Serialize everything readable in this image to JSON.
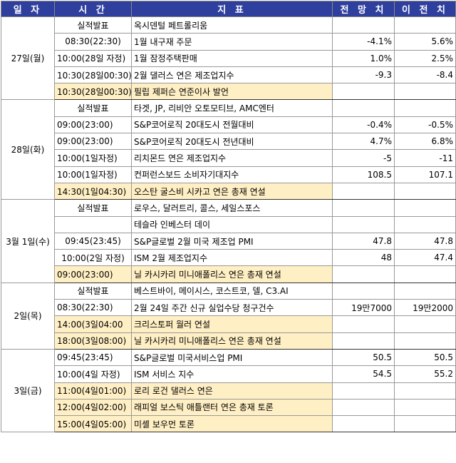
{
  "headers": {
    "date": "일 자",
    "time": "시 간",
    "indicator": "지 표",
    "forecast": "전 망 치",
    "previous": "이 전 치"
  },
  "days": [
    {
      "day": "27일(월)",
      "rows": [
        {
          "time": "실적발표",
          "event": "옥시덴털 페트롤리움",
          "forecast": "",
          "previous": "",
          "highlight": false,
          "center": true
        },
        {
          "time": "08:30(22:30)",
          "event": "1월 내구재 주문",
          "forecast": "-4.1%",
          "previous": "5.6%",
          "highlight": false,
          "center": true
        },
        {
          "time": "10:00(28일 자정)",
          "event": "1월 잠정주택판매",
          "forecast": "1.0%",
          "previous": "2.5%",
          "highlight": false,
          "center": false
        },
        {
          "time": "10:30(28일00:30)",
          "event": "2월 댈러스 연은 제조업지수",
          "forecast": "-9.3",
          "previous": "-8.4",
          "highlight": false,
          "center": true
        },
        {
          "time": "10:30(28일00:30)",
          "event": "필립 제퍼슨 연준이사 발언",
          "forecast": "",
          "previous": "",
          "highlight": true,
          "center": true
        }
      ]
    },
    {
      "day": "28일(화)",
      "rows": [
        {
          "time": "실적발표",
          "event": "타겟, JP, 리비안 오토모티브, AMC엔터",
          "forecast": "",
          "previous": "",
          "highlight": false,
          "center": true
        },
        {
          "time": "09:00(23:00)",
          "event": "S&P코어로직 20대도시 전월대비",
          "forecast": "-0.4%",
          "previous": "-0.5%",
          "highlight": false,
          "center": false
        },
        {
          "time": "09:00(23:00)",
          "event": "S&P코어로직 20대도시 전년대비",
          "forecast": "4.7%",
          "previous": "6.8%",
          "highlight": false,
          "center": false
        },
        {
          "time": "10:00(1일자정)",
          "event": "리치몬드 연은 제조업지수",
          "forecast": "-5",
          "previous": "-11",
          "highlight": false,
          "center": false
        },
        {
          "time": "10:00(1일자정)",
          "event": "컨퍼런스보드 소비자기대지수",
          "forecast": "108.5",
          "previous": "107.1",
          "highlight": false,
          "center": false
        },
        {
          "time": "14:30(1일04:30)",
          "event": "오스탄 굴스비 시카고 연은 총재 연설",
          "forecast": "",
          "previous": "",
          "highlight": true,
          "center": false
        }
      ]
    },
    {
      "day": "3월 1일(수)",
      "rows": [
        {
          "time": "실적발표",
          "event": "로우스, 달러트리, 콜스, 세일스포스",
          "forecast": "",
          "previous": "",
          "highlight": false,
          "center": true
        },
        {
          "time": "",
          "event": "테슬라 인베스터 데이",
          "forecast": "",
          "previous": "",
          "highlight": false,
          "center": true
        },
        {
          "time": "09:45(23:45)",
          "event": "S&P글로벌 2월 미국 제조업 PMI",
          "forecast": "47.8",
          "previous": "47.8",
          "highlight": false,
          "center": true
        },
        {
          "time": "10:00(2일 자정)",
          "event": "ISM 2월 제조업지수",
          "forecast": "48",
          "previous": "47.4",
          "highlight": false,
          "center": true
        },
        {
          "time": "09:00(23:00)",
          "event": "닐 카시카리 미니애폴리스 연은 총재 연설",
          "forecast": "",
          "previous": "",
          "highlight": true,
          "center": false
        }
      ]
    },
    {
      "day": "2일(목)",
      "rows": [
        {
          "time": "실적발표",
          "event": "베스트바이, 메이시스, 코스트코, 델, C3.AI",
          "forecast": "",
          "previous": "",
          "highlight": false,
          "center": true
        },
        {
          "time": "08:30(22:30)",
          "event": "2월 24일 주간 신규 실업수당 청구건수",
          "forecast": "19만7000",
          "previous": "19만2000",
          "highlight": false,
          "center": false
        },
        {
          "time": "14:00(3일04:00",
          "event": "크리스토퍼 월러 연설",
          "forecast": "",
          "previous": "",
          "highlight": true,
          "center": false
        },
        {
          "time": "18:00(3일08:00)",
          "event": "닐 카시카리 미니애폴리스 연은 총재 연설",
          "forecast": "",
          "previous": "",
          "highlight": true,
          "center": false
        }
      ]
    },
    {
      "day": "3일(금)",
      "rows": [
        {
          "time": "09:45(23:45)",
          "event": "S&P글로벌 미국서비스업 PMI",
          "forecast": "50.5",
          "previous": "50.5",
          "highlight": false,
          "center": false
        },
        {
          "time": "10:00(4일 자정)",
          "event": "ISM 서비스 지수",
          "forecast": "54.5",
          "previous": "55.2",
          "highlight": false,
          "center": false
        },
        {
          "time": "11:00(4일01:00)",
          "event": "로리 로건 댈러스 연은",
          "forecast": "",
          "previous": "",
          "highlight": true,
          "center": false
        },
        {
          "time": "12:00(4일02:00)",
          "event": "래피얼 보스틱 애틀랜터 연은 총재 토론",
          "forecast": "",
          "previous": "",
          "highlight": true,
          "center": false
        },
        {
          "time": "15:00(4일05:00)",
          "event": "미셸 보우먼 토론",
          "forecast": "",
          "previous": "",
          "highlight": true,
          "center": false
        }
      ]
    }
  ]
}
